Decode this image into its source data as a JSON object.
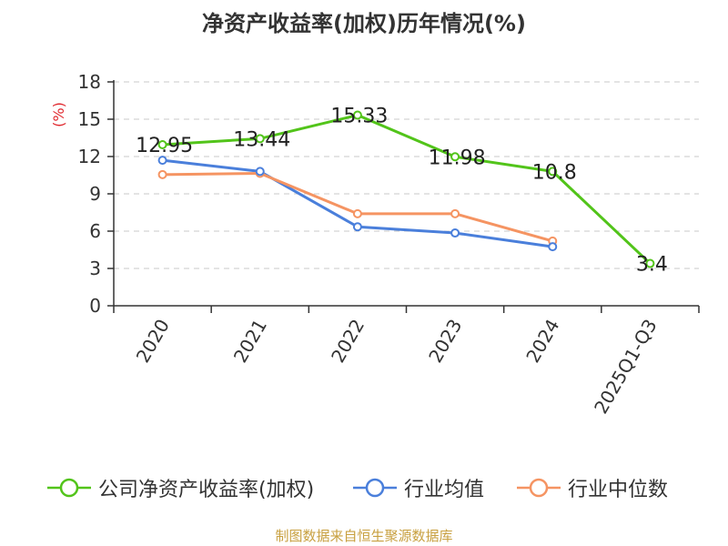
{
  "chart_data": {
    "type": "line",
    "title": "净资产收益率(加权)历年情况(%)",
    "ylabel": "(%)",
    "categories": [
      "2020",
      "2021",
      "2022",
      "2023",
      "2024",
      "2025Q1-Q3"
    ],
    "ylim": [
      0,
      18
    ],
    "yticks": [
      0,
      3,
      6,
      9,
      12,
      15,
      18
    ],
    "grid": true,
    "legend_position": "bottom",
    "series": [
      {
        "name": "公司净资产收益率(加权)",
        "color": "#52c41a",
        "values": [
          12.95,
          13.44,
          15.33,
          11.98,
          10.8,
          3.4
        ],
        "labels": true
      },
      {
        "name": "行业均值",
        "color": "#4a7fdb",
        "values": [
          11.7,
          10.8,
          6.35,
          5.85,
          4.75,
          null
        ],
        "labels": false
      },
      {
        "name": "行业中位数",
        "color": "#f59462",
        "values": [
          10.55,
          10.65,
          7.4,
          7.4,
          5.2,
          null
        ],
        "labels": false
      }
    ]
  },
  "source": "制图数据来自恒生聚源数据库"
}
